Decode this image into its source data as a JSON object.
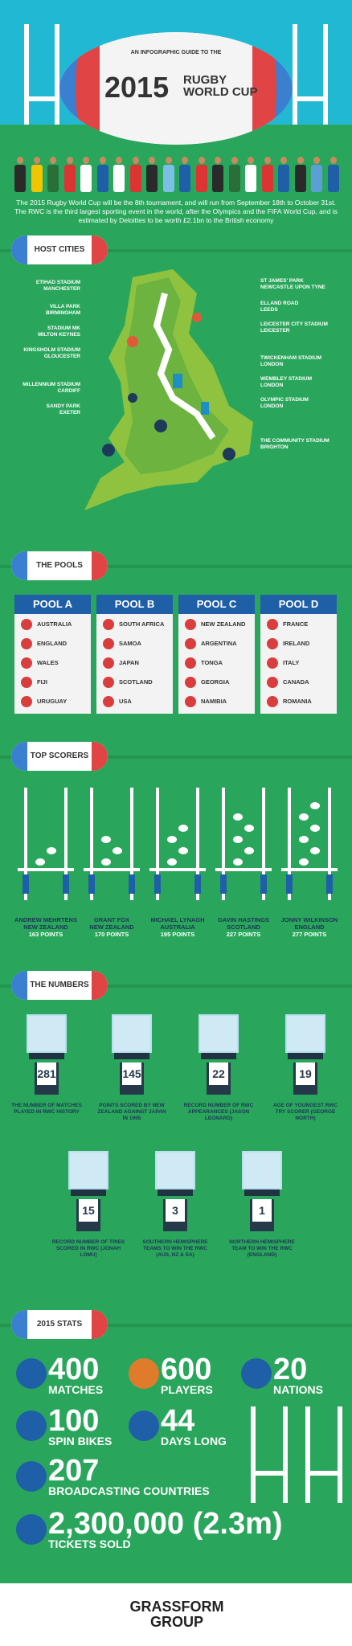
{
  "header": {
    "subtitle": "AN INFOGRAPHIC GUIDE TO THE",
    "year": "2015",
    "title_line1": "RUGBY",
    "title_line2": "WORLD CUP"
  },
  "intro": "The 2015 Rugby World Cup will be the 8th tournament, and will run from September 18th to October 31st. The RWC is the third largest sporting event in the world, after the Olympics and the FIFA World Cup, and is estimated by Deloittes to be worth £2.1bn to the British economy",
  "sections": {
    "host": "HOST CITIES",
    "pools": "THE POOLS",
    "scorers": "TOP SCORERS",
    "numbers": "THE NUMBERS",
    "stats": "2015 STATS"
  },
  "cities_left": [
    {
      "stadium": "ETIHAD STADIUM",
      "city": "MANCHESTER"
    },
    {
      "stadium": "VILLA PARK",
      "city": "BIRMINGHAM"
    },
    {
      "stadium": "STADIUM MK",
      "city": "MILTON KEYNES"
    },
    {
      "stadium": "KINGSHOLM STADIUM",
      "city": "GLOUCESTER"
    },
    {
      "stadium": "MILLENNIUM STADIUM",
      "city": "CARDIFF"
    },
    {
      "stadium": "SANDY PARK",
      "city": "EXETER"
    }
  ],
  "cities_right": [
    {
      "stadium": "ST JAMES' PARK",
      "city": "NEWCASTLE UPON TYNE"
    },
    {
      "stadium": "ELLAND ROAD",
      "city": "LEEDS"
    },
    {
      "stadium": "LEICESTER CITY STADIUM",
      "city": "LEICESTER"
    },
    {
      "stadium": "TWICKENHAM STADIUM",
      "city": "LONDON"
    },
    {
      "stadium": "WEMBLEY STADIUM",
      "city": "LONDON"
    },
    {
      "stadium": "OLYMPIC STADIUM",
      "city": "LONDON"
    },
    {
      "stadium": "THE COMMUNITY STADIUM",
      "city": "BRIGHTON"
    }
  ],
  "pools": [
    {
      "name": "POOL A",
      "teams": [
        "AUSTRALIA",
        "ENGLAND",
        "WALES",
        "FIJI",
        "URUGUAY"
      ]
    },
    {
      "name": "POOL B",
      "teams": [
        "SOUTH AFRICA",
        "SAMOA",
        "JAPAN",
        "SCOTLAND",
        "USA"
      ]
    },
    {
      "name": "POOL C",
      "teams": [
        "NEW ZEALAND",
        "ARGENTINA",
        "TONGA",
        "GEORGIA",
        "NAMIBIA"
      ]
    },
    {
      "name": "POOL D",
      "teams": [
        "FRANCE",
        "IRELAND",
        "ITALY",
        "CANADA",
        "ROMANIA"
      ]
    }
  ],
  "scorers": [
    {
      "name": "ANDREW MEHRTENS",
      "country": "NEW ZEALAND",
      "points": "163 POINTS"
    },
    {
      "name": "GRANT FOX",
      "country": "NEW ZEALAND",
      "points": "170 POINTS"
    },
    {
      "name": "MICHAEL LYNAGH",
      "country": "AUSTRALIA",
      "points": "195 POINTS"
    },
    {
      "name": "GAVIN HASTINGS",
      "country": "SCOTLAND",
      "points": "227 POINTS"
    },
    {
      "name": "JONNY WILKINSON",
      "country": "ENGLAND",
      "points": "277 POINTS"
    }
  ],
  "numbers": [
    {
      "value": "281",
      "caption": "THE NUMBER OF MATCHES PLAYED IN RWC HISTORY"
    },
    {
      "value": "145",
      "caption": "POINTS SCORED BY NEW ZEALAND AGAINST JAPAN IN 1995"
    },
    {
      "value": "22",
      "caption": "RECORD NUMBER OF RWC APPEARANCES (JASON LEONARD)"
    },
    {
      "value": "19",
      "caption": "AGE OF YOUNGEST RWC TRY SCORER (GEORGE NORTH)"
    },
    {
      "value": "15",
      "caption": "RECORD NUMBER OF TRIES SCORED IN RWC (JONAH LOMU)"
    },
    {
      "value": "3",
      "caption": "SOUTHERN HEMISPHERE TEAMS TO WIN THE RWC (AUS, NZ & SA)"
    },
    {
      "value": "1",
      "caption": "NORTHERN HEMISPHERE TEAM TO WIN THE RWC (ENGLAND)"
    }
  ],
  "stats": {
    "matches": {
      "value": "400",
      "label": "MATCHES"
    },
    "players": {
      "value": "600",
      "label": "PLAYERS"
    },
    "nations": {
      "value": "20",
      "label": "NATIONS"
    },
    "bikes": {
      "value": "100",
      "label": "SPIN BIKES"
    },
    "days": {
      "value": "44",
      "label": "DAYS LONG"
    },
    "broadcast": {
      "value": "207",
      "label": "BROADCASTING COUNTRIES"
    },
    "tickets": {
      "value": "2,300,000 (2.3m)",
      "label": "TICKETS SOLD"
    }
  },
  "footer": {
    "line1": "GRASSFORM",
    "line2": "GROUP"
  },
  "colors": {
    "sky": "#21b8d4",
    "grass": "#2aa65c",
    "navy": "#1e5fa8",
    "red": "#e04444"
  }
}
